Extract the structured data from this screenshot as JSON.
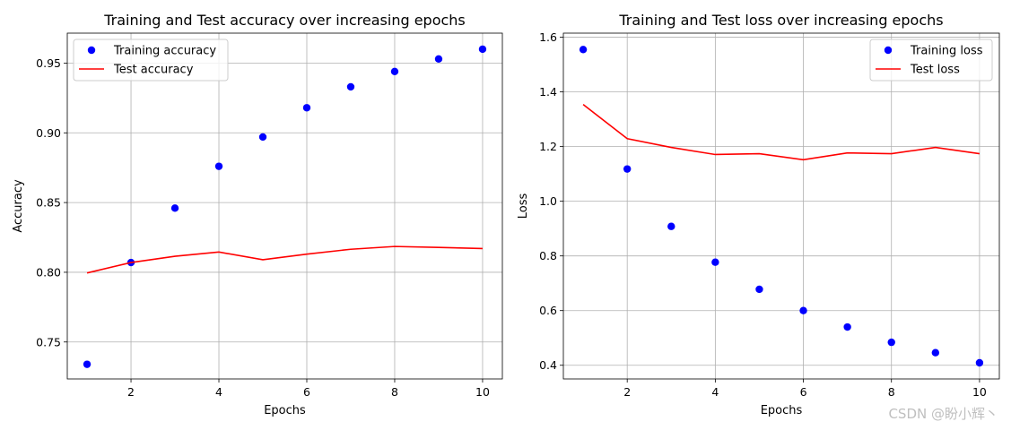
{
  "chart_data": [
    {
      "type": "scatter+line",
      "title": "Training and Test accuracy over increasing epochs",
      "xlabel": "Epochs",
      "ylabel": "Accuracy",
      "xlim": [
        0.55,
        10.45
      ],
      "ylim": [
        0.7235,
        0.9715
      ],
      "xticks": [
        2,
        4,
        6,
        8,
        10
      ],
      "yticks": [
        0.75,
        0.8,
        0.85,
        0.9,
        0.95
      ],
      "ytick_labels": [
        "0.75",
        "0.80",
        "0.85",
        "0.90",
        "0.95"
      ],
      "grid": true,
      "legend_position": "top-left",
      "series": [
        {
          "name": "Training accuracy",
          "style": "markers",
          "color": "#0000ff",
          "x": [
            1,
            2,
            3,
            4,
            5,
            6,
            7,
            8,
            9,
            10
          ],
          "y": [
            0.734,
            0.807,
            0.846,
            0.876,
            0.897,
            0.918,
            0.933,
            0.944,
            0.953,
            0.96
          ]
        },
        {
          "name": "Test accuracy",
          "style": "line",
          "color": "#ff0000",
          "x": [
            1,
            2,
            3,
            4,
            5,
            6,
            7,
            8,
            9,
            10
          ],
          "y": [
            0.7995,
            0.807,
            0.8115,
            0.8145,
            0.809,
            0.813,
            0.8165,
            0.8185,
            0.8178,
            0.817
          ]
        }
      ]
    },
    {
      "type": "scatter+line",
      "title": "Training and Test loss over increasing epochs",
      "xlabel": "Epochs",
      "ylabel": "Loss",
      "xlim": [
        0.55,
        10.45
      ],
      "ylim": [
        0.35,
        1.615
      ],
      "xticks": [
        2,
        4,
        6,
        8,
        10
      ],
      "yticks": [
        0.4,
        0.6,
        0.8,
        1.0,
        1.2,
        1.4,
        1.6
      ],
      "ytick_labels": [
        "0.4",
        "0.6",
        "0.8",
        "1.0",
        "1.2",
        "1.4",
        "1.6"
      ],
      "grid": true,
      "legend_position": "top-right",
      "series": [
        {
          "name": "Training loss",
          "style": "markers",
          "color": "#0000ff",
          "x": [
            1,
            2,
            3,
            4,
            5,
            6,
            7,
            8,
            9,
            10
          ],
          "y": [
            1.555,
            1.118,
            0.908,
            0.777,
            0.678,
            0.6,
            0.54,
            0.484,
            0.446,
            0.409
          ]
        },
        {
          "name": "Test loss",
          "style": "line",
          "color": "#ff0000",
          "x": [
            1,
            2,
            3,
            4,
            5,
            6,
            7,
            8,
            9,
            10
          ],
          "y": [
            1.354,
            1.229,
            1.197,
            1.171,
            1.174,
            1.152,
            1.177,
            1.174,
            1.197,
            1.174
          ]
        }
      ]
    }
  ],
  "watermark": "CSDN @盼小辉丶"
}
